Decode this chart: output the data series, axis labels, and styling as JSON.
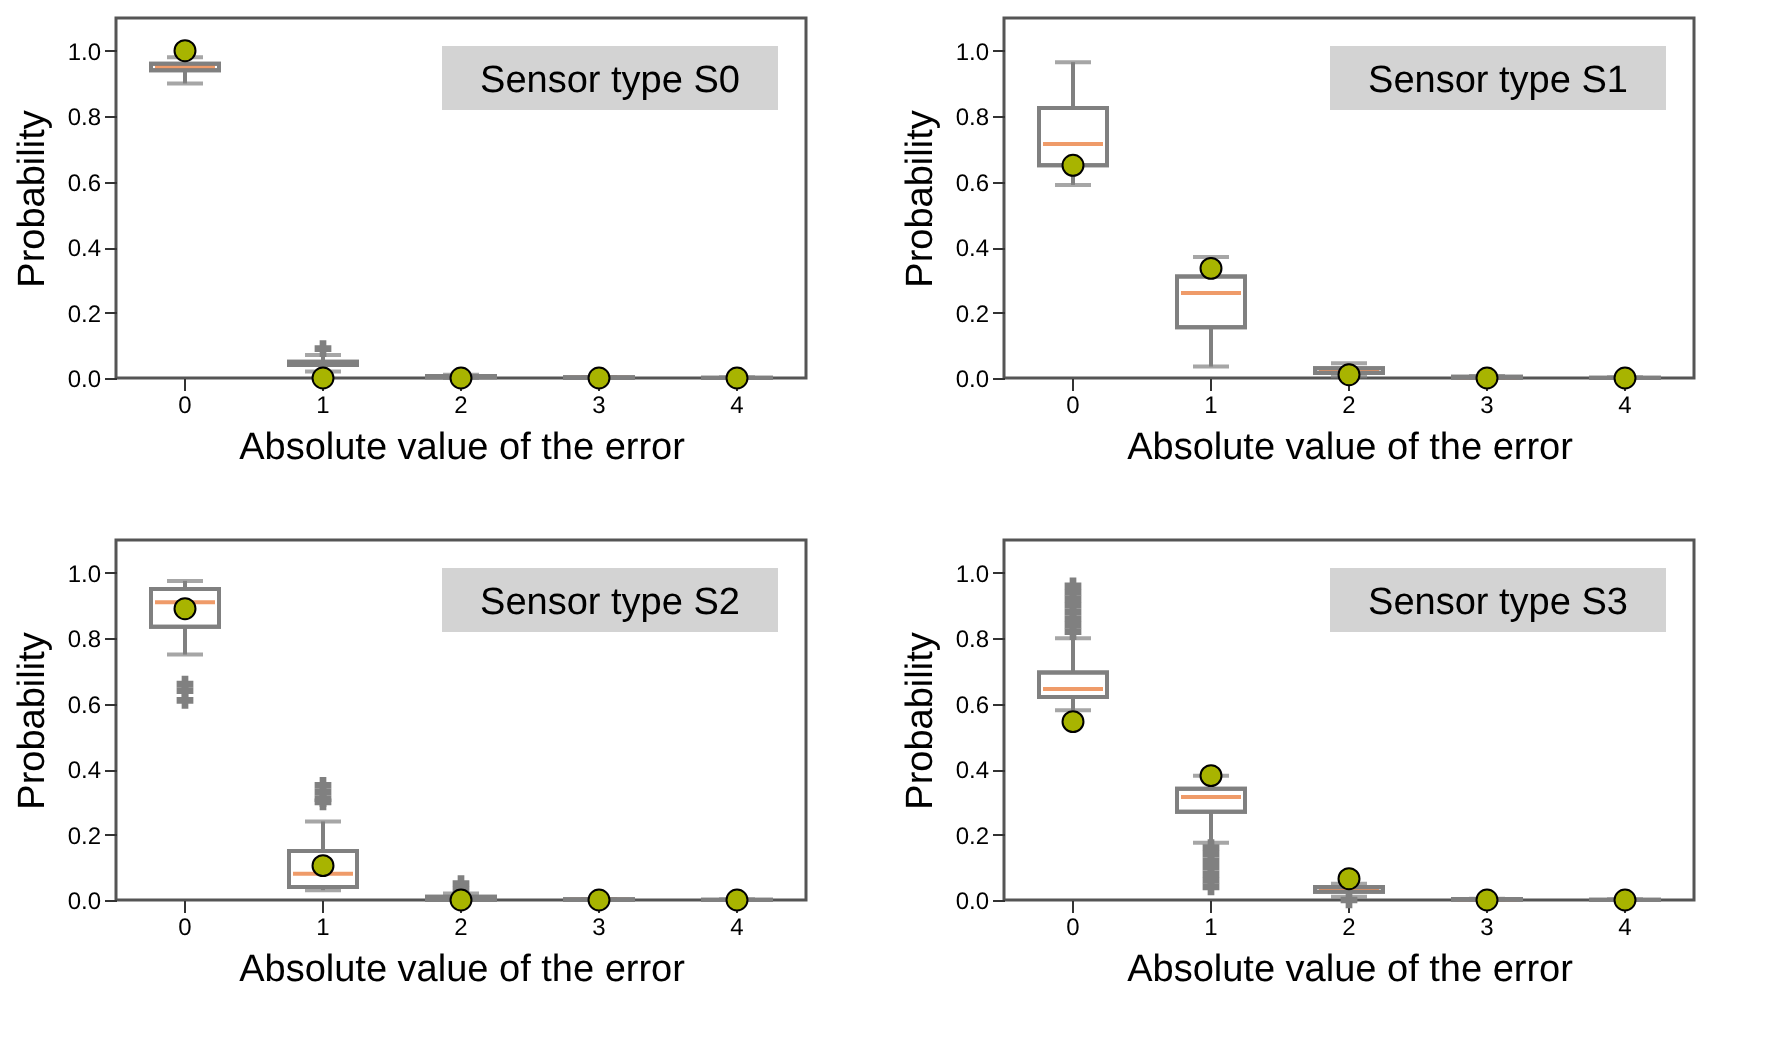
{
  "chart_data": [
    {
      "type": "box",
      "annotations": [
        "Sensor type S0"
      ],
      "xlabel": "Absolute value of the error",
      "ylabel": "Probability",
      "categories": [
        "0",
        "1",
        "2",
        "3",
        "4"
      ],
      "series": [
        {
          "type": "box",
          "color": "#808080",
          "boxes": [
            {
              "low": 0.9,
              "q1": 0.94,
              "median": 0.95,
              "q3": 0.96,
              "high": 0.98
            },
            {
              "low": 0.02,
              "q1": 0.04,
              "median": 0.045,
              "q3": 0.05,
              "high": 0.07,
              "outliers": [
                0.09
              ]
            },
            {
              "low": 0.0,
              "q1": 0.002,
              "median": 0.004,
              "q3": 0.006,
              "high": 0.01
            },
            {
              "low": 0.0,
              "q1": 0.0,
              "median": 0.001,
              "q3": 0.002,
              "high": 0.003
            },
            {
              "low": 0.0,
              "q1": 0.0,
              "median": 0.0,
              "q3": 0.001,
              "high": 0.002
            }
          ]
        },
        {
          "type": "scatter",
          "color": "#a8b400",
          "x": [
            "0",
            "1",
            "2",
            "3",
            "4"
          ],
          "values": [
            1.0,
            0.0,
            0.0,
            0.0,
            0.0
          ]
        }
      ],
      "ylim": [
        0,
        1.1
      ],
      "yticks": [
        {
          "value": 0,
          "label": "0.0"
        },
        {
          "value": 0.2,
          "label": "0.2"
        },
        {
          "value": 0.4,
          "label": "0.4"
        },
        {
          "value": 0.6,
          "label": "0.6"
        },
        {
          "value": 0.8,
          "label": "0.8"
        },
        {
          "value": 1,
          "label": "1.0"
        }
      ],
      "grid": false,
      "legend": false,
      "marker": "circle"
    },
    {
      "type": "box",
      "annotations": [
        "Sensor type S1"
      ],
      "xlabel": "Absolute value of the error",
      "ylabel": "Probability",
      "categories": [
        "0",
        "1",
        "2",
        "3",
        "4"
      ],
      "series": [
        {
          "type": "box",
          "color": "#808080",
          "boxes": [
            {
              "low": 0.59,
              "q1": 0.65,
              "median": 0.715,
              "q3": 0.825,
              "high": 0.965
            },
            {
              "low": 0.035,
              "q1": 0.155,
              "median": 0.26,
              "q3": 0.31,
              "high": 0.37
            },
            {
              "low": 0.005,
              "q1": 0.015,
              "median": 0.02,
              "q3": 0.03,
              "high": 0.045
            },
            {
              "low": 0.0,
              "q1": 0.001,
              "median": 0.002,
              "q3": 0.004,
              "high": 0.006
            },
            {
              "low": 0.0,
              "q1": 0.0,
              "median": 0.0,
              "q3": 0.001,
              "high": 0.002
            }
          ]
        },
        {
          "type": "scatter",
          "color": "#a8b400",
          "x": [
            "0",
            "1",
            "2",
            "3",
            "4"
          ],
          "values": [
            0.65,
            0.335,
            0.01,
            0.0,
            0.0
          ]
        }
      ],
      "ylim": [
        0,
        1.1
      ],
      "yticks": [
        {
          "value": 0,
          "label": "0.0"
        },
        {
          "value": 0.2,
          "label": "0.2"
        },
        {
          "value": 0.4,
          "label": "0.4"
        },
        {
          "value": 0.6,
          "label": "0.6"
        },
        {
          "value": 0.8,
          "label": "0.8"
        },
        {
          "value": 1,
          "label": "1.0"
        }
      ],
      "grid": false,
      "legend": false,
      "marker": "circle"
    },
    {
      "type": "box",
      "annotations": [
        "Sensor type S2"
      ],
      "xlabel": "Absolute value of the error",
      "ylabel": "Probability",
      "categories": [
        "0",
        "1",
        "2",
        "3",
        "4"
      ],
      "series": [
        {
          "type": "box",
          "color": "#808080",
          "boxes": [
            {
              "low": 0.75,
              "q1": 0.835,
              "median": 0.91,
              "q3": 0.95,
              "high": 0.975,
              "outliers": [
                0.61,
                0.64,
                0.66
              ]
            },
            {
              "low": 0.03,
              "q1": 0.04,
              "median": 0.08,
              "q3": 0.15,
              "high": 0.24,
              "outliers": [
                0.3,
                0.31,
                0.33,
                0.35
              ]
            },
            {
              "low": 0.0,
              "q1": 0.0,
              "median": 0.005,
              "q3": 0.01,
              "high": 0.02,
              "outliers": [
                0.03,
                0.05
              ]
            },
            {
              "low": 0.0,
              "q1": 0.0,
              "median": 0.001,
              "q3": 0.002,
              "high": 0.003
            },
            {
              "low": 0.0,
              "q1": 0.0,
              "median": 0.0,
              "q3": 0.001,
              "high": 0.002
            }
          ]
        },
        {
          "type": "scatter",
          "color": "#a8b400",
          "x": [
            "0",
            "1",
            "2",
            "3",
            "4"
          ],
          "values": [
            0.89,
            0.105,
            0.0,
            0.0,
            0.0
          ]
        }
      ],
      "ylim": [
        0,
        1.1
      ],
      "yticks": [
        {
          "value": 0,
          "label": "0.0"
        },
        {
          "value": 0.2,
          "label": "0.2"
        },
        {
          "value": 0.4,
          "label": "0.4"
        },
        {
          "value": 0.6,
          "label": "0.6"
        },
        {
          "value": 0.8,
          "label": "0.8"
        },
        {
          "value": 1,
          "label": "1.0"
        }
      ],
      "grid": false,
      "legend": false,
      "marker": "circle"
    },
    {
      "type": "box",
      "annotations": [
        "Sensor type S3"
      ],
      "xlabel": "Absolute value of the error",
      "ylabel": "Probability",
      "categories": [
        "0",
        "1",
        "2",
        "3",
        "4"
      ],
      "series": [
        {
          "type": "box",
          "color": "#808080",
          "boxes": [
            {
              "low": 0.58,
              "q1": 0.62,
              "median": 0.645,
              "q3": 0.695,
              "high": 0.8,
              "outliers": [
                0.82,
                0.84,
                0.86,
                0.88,
                0.9,
                0.92,
                0.94,
                0.96
              ]
            },
            {
              "low": 0.175,
              "q1": 0.27,
              "median": 0.315,
              "q3": 0.34,
              "high": 0.38,
              "outliers": [
                0.04,
                0.06,
                0.08,
                0.1,
                0.12,
                0.14,
                0.16
              ]
            },
            {
              "low": 0.01,
              "q1": 0.025,
              "median": 0.03,
              "q3": 0.04,
              "high": 0.05,
              "outliers": [
                0.0
              ]
            },
            {
              "low": 0.0,
              "q1": 0.001,
              "median": 0.002,
              "q3": 0.003,
              "high": 0.004
            },
            {
              "low": 0.0,
              "q1": 0.0,
              "median": 0.0,
              "q3": 0.001,
              "high": 0.002
            }
          ]
        },
        {
          "type": "scatter",
          "color": "#a8b400",
          "x": [
            "0",
            "1",
            "2",
            "3",
            "4"
          ],
          "values": [
            0.545,
            0.38,
            0.065,
            0.0,
            0.0
          ]
        }
      ],
      "ylim": [
        0,
        1.1
      ],
      "yticks": [
        {
          "value": 0,
          "label": "0.0"
        },
        {
          "value": 0.2,
          "label": "0.2"
        },
        {
          "value": 0.4,
          "label": "0.4"
        },
        {
          "value": 0.6,
          "label": "0.6"
        },
        {
          "value": 0.8,
          "label": "0.8"
        },
        {
          "value": 1,
          "label": "1.0"
        }
      ],
      "grid": false,
      "legend": false,
      "marker": "circle"
    }
  ]
}
